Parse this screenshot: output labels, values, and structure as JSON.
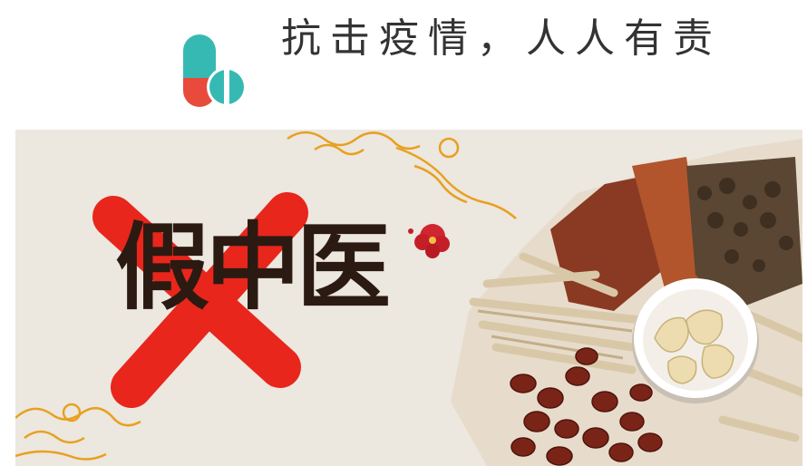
{
  "header": {
    "slogan": "抗击疫情，人人有责",
    "logo_icon": "pill-capsule-icon",
    "colors": {
      "teal": "#37b9b3",
      "red": "#e84a3c",
      "text": "#333333"
    }
  },
  "banner": {
    "title": "假中医",
    "cross_icon": "red-x-icon",
    "flower_icon": "plum-blossom-icon",
    "herbs_image": "chinese-herbal-medicine-image",
    "colors": {
      "cross": "#e8261c",
      "paper": "#ece7df",
      "cloud": "#e8a020",
      "title": "#2b1a12"
    }
  }
}
